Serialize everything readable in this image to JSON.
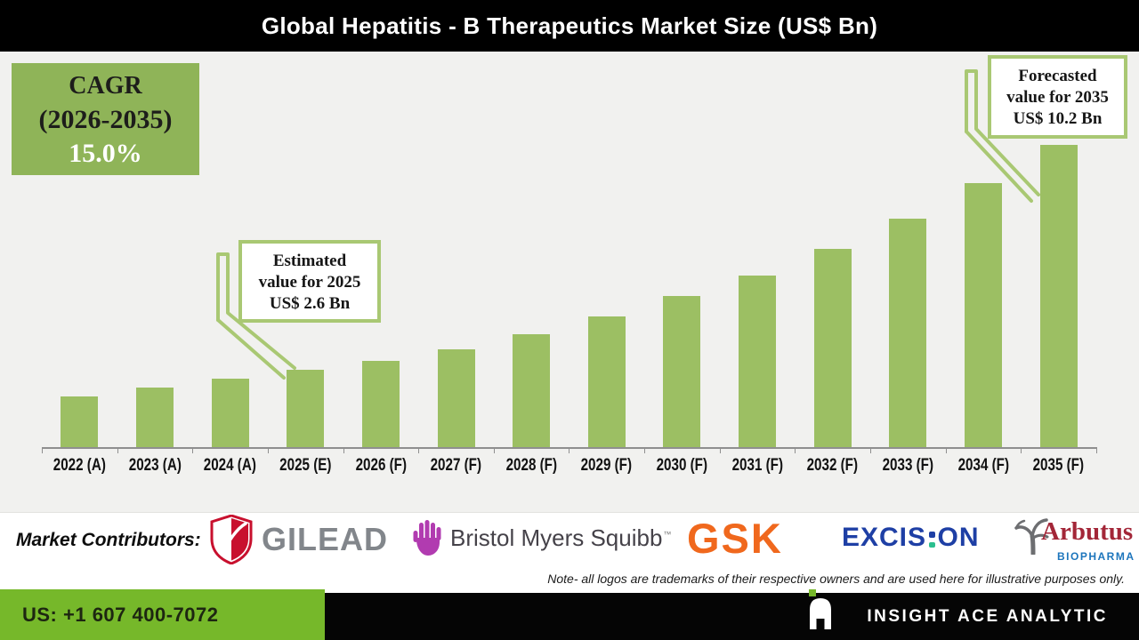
{
  "header": {
    "title": "Global Hepatitis - B Therapeutics Market Size (US$ Bn)"
  },
  "chart_data": {
    "type": "bar",
    "title": "Global Hepatitis - B Therapeutics Market Size (US$ Bn)",
    "unit": "US$ Bn",
    "categories": [
      "2022 (A)",
      "2023 (A)",
      "2024 (A)",
      "2025 (E)",
      "2026 (F)",
      "2027 (F)",
      "2028 (F)",
      "2029 (F)",
      "2030 (F)",
      "2031 (F)",
      "2032 (F)",
      "2033 (F)",
      "2034 (F)",
      "2035 (F)"
    ],
    "values": [
      1.7,
      2.0,
      2.3,
      2.6,
      2.9,
      3.3,
      3.8,
      4.4,
      5.1,
      5.8,
      6.7,
      7.7,
      8.9,
      10.2
    ],
    "ylim": [
      0,
      10.2
    ],
    "grid": false,
    "legend": "none",
    "bar_color": "#9CBF63",
    "cagr_label": {
      "line1": "CAGR",
      "line2": "(2026-2035)",
      "line3": "15.0%"
    },
    "annotations": [
      {
        "target": "2025 (E)",
        "line1": "Estimated",
        "line2": "value for 2025",
        "line3": "US$ 2.6 Bn"
      },
      {
        "target": "2035 (F)",
        "line1": "Forecasted",
        "line2": "value for 2035",
        "line3": "US$ 10.2 Bn"
      }
    ]
  },
  "contributors": {
    "label": "Market Contributors:",
    "gilead": {
      "name": "GILEAD"
    },
    "bms": {
      "name": "Bristol Myers Squibb",
      "tm": "™"
    },
    "gsk": {
      "name": "GSK"
    },
    "excision": {
      "part1": "EXCIS",
      "part2": "ON"
    },
    "arbutus": {
      "name": "Arbutus",
      "sub": "BIOPHARMA"
    },
    "note": "Note- all logos are trademarks of their respective owners and are used here for illustrative purposes only."
  },
  "footer": {
    "phone": "US: +1 607 400-7072",
    "brand": "INSIGHT ACE ANALYTIC"
  },
  "icons": {
    "gilead": "shield-leaf-icon",
    "bms": "hand-icon",
    "arbutus": "tree-icon",
    "insight_ace": "letter-a-logo-icon"
  },
  "colors": {
    "bar_green": "#9CBF63",
    "cagr_green": "#8FB458",
    "callout_border": "#A9C873",
    "footer_green": "#76B82A",
    "gilead_red": "#C8102E",
    "gilead_gray": "#82868B",
    "bms_purple": "#B13BB0",
    "bms_text": "#454249",
    "gsk_orange": "#F0681D",
    "excision_blue": "#1E3FA5",
    "excision_teal": "#2BBF8F",
    "arbutus_maroon": "#A32638",
    "arbutus_blue": "#1C75BC"
  }
}
